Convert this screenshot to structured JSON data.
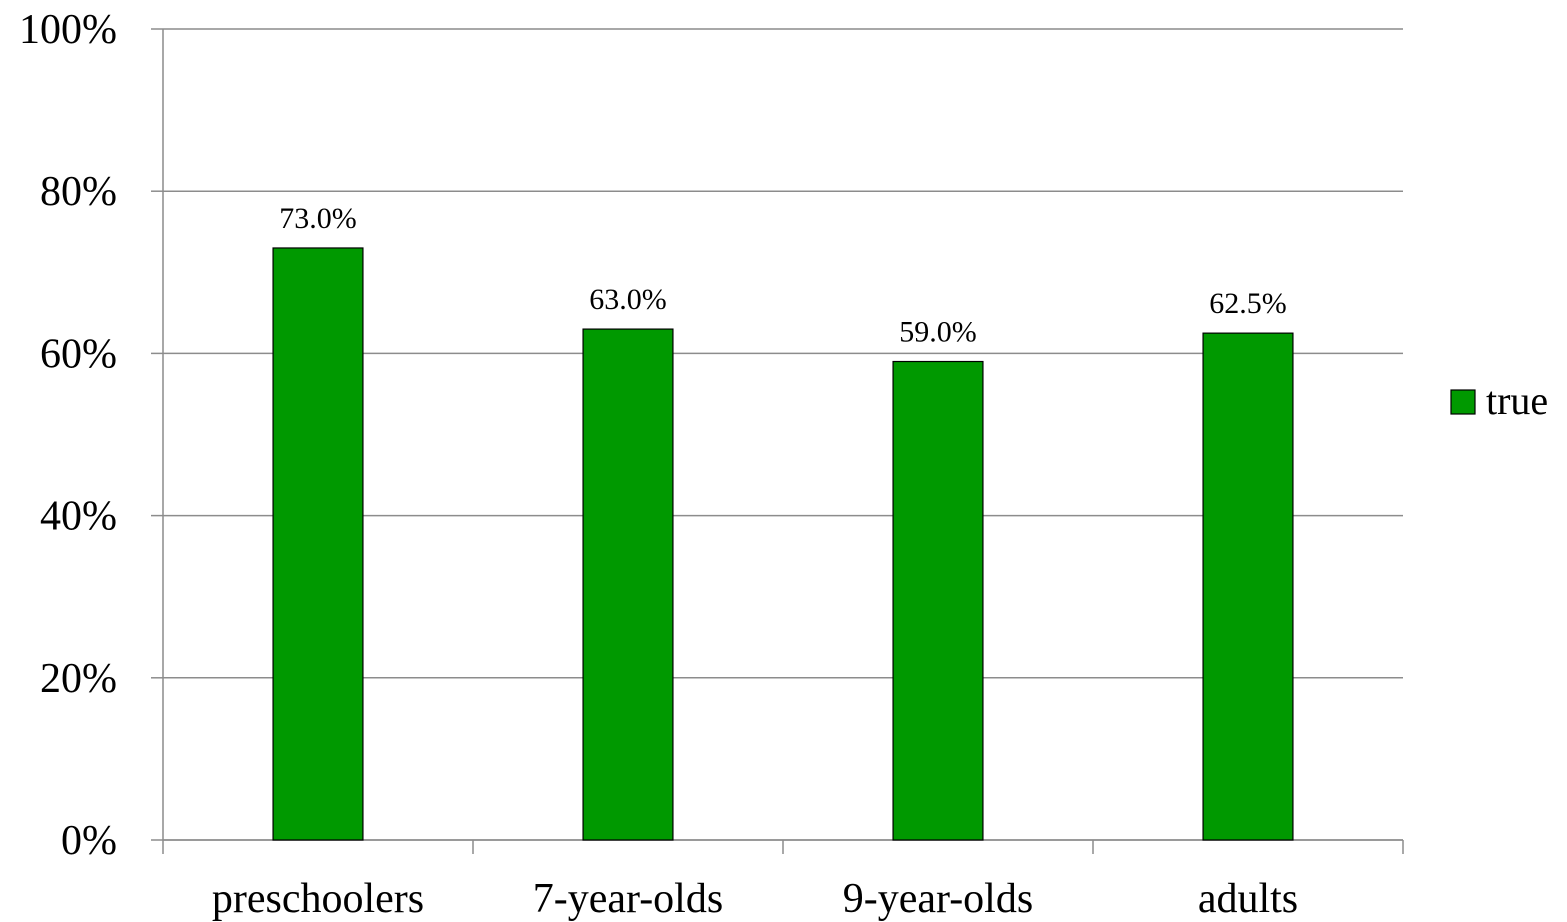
{
  "chart_data": {
    "type": "bar",
    "categories": [
      "preschoolers",
      "7-year-olds",
      "9-year-olds",
      "adults"
    ],
    "series": [
      {
        "name": "true",
        "values": [
          73.0,
          63.0,
          59.0,
          62.5
        ],
        "labels": [
          "73.0%",
          "63.0%",
          "59.0%",
          "62.5%"
        ],
        "color": "#009900"
      }
    ],
    "ylim": [
      0,
      100
    ],
    "yticks": [
      0,
      20,
      40,
      60,
      80,
      100
    ],
    "ytick_labels": [
      "0%",
      "20%",
      "40%",
      "60%",
      "80%",
      "100%"
    ],
    "grid": true,
    "legend_position": "right",
    "title": "",
    "xlabel": "",
    "ylabel": ""
  }
}
